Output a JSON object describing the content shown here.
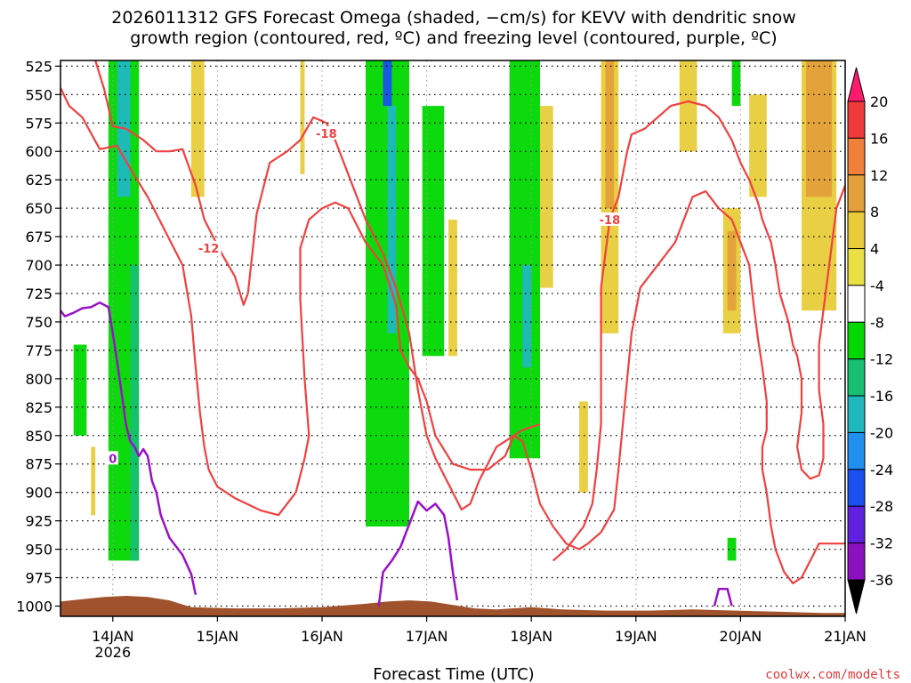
{
  "chart_data": {
    "type": "heatmap",
    "title_line1": "2026011312 GFS Forecast Omega (shaded, −cm/s) for KEVV with dendritic snow",
    "title_line2": "growth region (contoured, red, ºC) and freezing level (contoured, purple, ºC)",
    "xlabel": "Forecast Time (UTC)",
    "credit": "coolwx.com/modelts",
    "y_axis": {
      "unit": "hPa",
      "ticks": [
        "525",
        "550",
        "575",
        "600",
        "625",
        "650",
        "675",
        "700",
        "725",
        "750",
        "775",
        "800",
        "825",
        "850",
        "875",
        "900",
        "925",
        "950",
        "975",
        "1000"
      ]
    },
    "x_axis": {
      "ticks": [
        {
          "label": "14JAN",
          "sub": "2026",
          "t": 12
        },
        {
          "label": "15JAN",
          "sub": "",
          "t": 36
        },
        {
          "label": "16JAN",
          "sub": "",
          "t": 60
        },
        {
          "label": "17JAN",
          "sub": "",
          "t": 84
        },
        {
          "label": "18JAN",
          "sub": "",
          "t": 108
        },
        {
          "label": "19JAN",
          "sub": "",
          "t": 132
        },
        {
          "label": "20JAN",
          "sub": "",
          "t": 156
        },
        {
          "label": "21JAN",
          "sub": "",
          "t": 180
        }
      ],
      "range_hours": [
        0,
        180
      ]
    },
    "colorbar": {
      "labels": [
        "20",
        "16",
        "12",
        "8",
        "4",
        "-4",
        "-8",
        "-12",
        "-16",
        "-20",
        "-24",
        "-28",
        "-32",
        "-36"
      ],
      "colors": [
        "#ff1a6e",
        "#ee3a3a",
        "#f0803a",
        "#e3a03a",
        "#e8cc3a",
        "#eae044",
        "#ffffff",
        "#00d800",
        "#16c070",
        "#20b8c0",
        "#2090f0",
        "#1a50f0",
        "#6020e0",
        "#8a10c0",
        "#a0a0a0",
        "#000000"
      ]
    },
    "omega_bands": [
      {
        "t0": 11,
        "t1": 18,
        "p0": 520,
        "p1": 960,
        "color": "#00d800"
      },
      {
        "t0": 13,
        "t1": 16,
        "p0": 520,
        "p1": 640,
        "color": "#20b8c0"
      },
      {
        "t0": 16,
        "t1": 18,
        "p0": 700,
        "p1": 960,
        "color": "#16c070"
      },
      {
        "t0": 3,
        "t1": 6,
        "p0": 770,
        "p1": 850,
        "color": "#00d800"
      },
      {
        "t0": 7,
        "t1": 8,
        "p0": 860,
        "p1": 920,
        "color": "#e8cc3a"
      },
      {
        "t0": 30,
        "t1": 33,
        "p0": 520,
        "p1": 640,
        "color": "#e8cc3a"
      },
      {
        "t0": 55,
        "t1": 56,
        "p0": 520,
        "p1": 620,
        "color": "#e8cc3a"
      },
      {
        "t0": 70,
        "t1": 80,
        "p0": 520,
        "p1": 930,
        "color": "#00d800"
      },
      {
        "t0": 74,
        "t1": 76,
        "p0": 520,
        "p1": 560,
        "color": "#1a50f0"
      },
      {
        "t0": 75,
        "t1": 77,
        "p0": 560,
        "p1": 760,
        "color": "#20b8c0"
      },
      {
        "t0": 83,
        "t1": 88,
        "p0": 560,
        "p1": 780,
        "color": "#00d800"
      },
      {
        "t0": 89,
        "t1": 91,
        "p0": 660,
        "p1": 780,
        "color": "#e8cc3a"
      },
      {
        "t0": 103,
        "t1": 110,
        "p0": 520,
        "p1": 870,
        "color": "#00d800"
      },
      {
        "t0": 106,
        "t1": 108,
        "p0": 700,
        "p1": 790,
        "color": "#20b8c0"
      },
      {
        "t0": 110,
        "t1": 113,
        "p0": 560,
        "p1": 720,
        "color": "#e8cc3a"
      },
      {
        "t0": 119,
        "t1": 121,
        "p0": 820,
        "p1": 900,
        "color": "#e8cc3a"
      },
      {
        "t0": 124,
        "t1": 128,
        "p0": 520,
        "p1": 760,
        "color": "#e8cc3a"
      },
      {
        "t0": 125,
        "t1": 127,
        "p0": 520,
        "p1": 650,
        "color": "#e3a03a"
      },
      {
        "t0": 142,
        "t1": 146,
        "p0": 520,
        "p1": 600,
        "color": "#e8cc3a"
      },
      {
        "t0": 154,
        "t1": 156,
        "p0": 520,
        "p1": 560,
        "color": "#00d800"
      },
      {
        "t0": 152,
        "t1": 156,
        "p0": 650,
        "p1": 760,
        "color": "#e8cc3a"
      },
      {
        "t0": 153,
        "t1": 155,
        "p0": 670,
        "p1": 740,
        "color": "#e3a03a"
      },
      {
        "t0": 158,
        "t1": 162,
        "p0": 550,
        "p1": 640,
        "color": "#e8cc3a"
      },
      {
        "t0": 153,
        "t1": 155,
        "p0": 940,
        "p1": 960,
        "color": "#00d800"
      },
      {
        "t0": 170,
        "t1": 178,
        "p0": 520,
        "p1": 740,
        "color": "#e8cc3a"
      },
      {
        "t0": 171,
        "t1": 177,
        "p0": 520,
        "p1": 640,
        "color": "#e3a03a"
      }
    ],
    "dgz_contours": [
      {
        "label": "-12",
        "label_at": [
          34,
          685
        ],
        "points": [
          [
            0,
            544
          ],
          [
            2,
            560
          ],
          [
            5,
            570
          ],
          [
            9,
            598
          ],
          [
            13,
            595
          ],
          [
            16,
            615
          ],
          [
            20,
            640
          ],
          [
            24,
            670
          ],
          [
            28,
            700
          ],
          [
            30,
            745
          ],
          [
            31,
            790
          ],
          [
            32,
            830
          ],
          [
            33,
            860
          ],
          [
            34,
            880
          ],
          [
            36,
            895
          ],
          [
            40,
            905
          ],
          [
            46,
            916
          ],
          [
            50,
            920
          ],
          [
            54,
            900
          ],
          [
            56,
            870
          ],
          [
            57,
            850
          ],
          [
            56,
            800
          ],
          [
            55,
            730
          ],
          [
            55,
            685
          ],
          [
            57,
            660
          ],
          [
            60,
            650
          ],
          [
            63,
            645
          ],
          [
            66,
            650
          ],
          [
            70,
            680
          ],
          [
            74,
            700
          ],
          [
            77,
            735
          ],
          [
            78,
            775
          ],
          [
            80,
            790
          ],
          [
            82,
            800
          ],
          [
            84,
            820
          ],
          [
            86,
            850
          ],
          [
            90,
            875
          ],
          [
            94,
            880
          ],
          [
            98,
            880
          ],
          [
            102,
            868
          ],
          [
            104,
            850
          ],
          [
            106,
            855
          ],
          [
            108,
            880
          ],
          [
            110,
            910
          ],
          [
            113,
            930
          ],
          [
            116,
            945
          ],
          [
            119,
            950
          ],
          [
            121,
            945
          ],
          [
            124,
            935
          ],
          [
            127,
            915
          ],
          [
            128,
            880
          ],
          [
            129,
            840
          ],
          [
            130,
            800
          ],
          [
            131,
            760
          ],
          [
            133,
            720
          ],
          [
            137,
            700
          ],
          [
            141,
            680
          ],
          [
            143,
            660
          ],
          [
            145,
            640
          ],
          [
            148,
            635
          ],
          [
            151,
            650
          ],
          [
            154,
            660
          ],
          [
            156,
            680
          ],
          [
            158,
            700
          ],
          [
            159,
            735
          ],
          [
            160,
            765
          ],
          [
            161,
            790
          ],
          [
            162,
            820
          ],
          [
            162,
            845
          ],
          [
            161,
            860
          ],
          [
            161,
            880
          ],
          [
            162,
            900
          ],
          [
            163,
            930
          ],
          [
            164,
            950
          ],
          [
            166,
            970
          ],
          [
            168,
            980
          ],
          [
            170,
            975
          ],
          [
            172,
            960
          ],
          [
            174,
            945
          ],
          [
            178,
            945
          ],
          [
            180,
            945
          ]
        ]
      },
      {
        "label": "-18",
        "label_at": [
          61,
          584
        ],
        "points": [
          [
            8,
            520
          ],
          [
            10,
            545
          ],
          [
            12,
            578
          ],
          [
            15,
            580
          ],
          [
            17,
            585
          ],
          [
            19,
            590
          ],
          [
            22,
            600
          ],
          [
            25,
            600
          ],
          [
            28,
            598
          ],
          [
            31,
            630
          ],
          [
            33,
            660
          ],
          [
            37,
            690
          ],
          [
            40,
            710
          ],
          [
            42,
            735
          ],
          [
            43,
            725
          ],
          [
            44,
            690
          ],
          [
            45,
            655
          ],
          [
            48,
            610
          ],
          [
            52,
            600
          ],
          [
            55,
            590
          ],
          [
            58,
            570
          ],
          [
            61,
            575
          ],
          [
            63,
            590
          ],
          [
            66,
            620
          ],
          [
            70,
            660
          ],
          [
            74,
            690
          ],
          [
            77,
            720
          ],
          [
            80,
            760
          ],
          [
            82,
            810
          ],
          [
            84,
            850
          ],
          [
            86,
            870
          ],
          [
            88,
            885
          ],
          [
            90,
            900
          ],
          [
            92,
            915
          ],
          [
            94,
            910
          ],
          [
            96,
            890
          ],
          [
            98,
            875
          ],
          [
            100,
            860
          ],
          [
            102,
            855
          ],
          [
            104,
            850
          ],
          [
            106,
            845
          ],
          [
            110,
            840
          ]
        ]
      },
      {
        "label": "-18",
        "label_at": [
          126,
          660
        ],
        "points": [
          [
            113,
            960
          ],
          [
            116,
            950
          ],
          [
            120,
            930
          ],
          [
            122,
            910
          ],
          [
            123,
            880
          ],
          [
            124,
            840
          ],
          [
            124,
            800
          ],
          [
            124,
            760
          ],
          [
            124,
            720
          ],
          [
            125,
            690
          ],
          [
            126,
            660
          ],
          [
            128,
            640
          ],
          [
            129,
            620
          ],
          [
            130,
            600
          ],
          [
            131,
            585
          ],
          [
            134,
            580
          ],
          [
            137,
            570
          ],
          [
            140,
            560
          ],
          [
            144,
            556
          ],
          [
            148,
            560
          ],
          [
            151,
            570
          ],
          [
            154,
            590
          ],
          [
            156,
            610
          ],
          [
            158,
            625
          ],
          [
            160,
            645
          ],
          [
            161,
            660
          ],
          [
            163,
            680
          ],
          [
            164,
            700
          ],
          [
            165,
            725
          ],
          [
            167,
            750
          ],
          [
            168,
            770
          ],
          [
            169,
            780
          ],
          [
            170,
            800
          ],
          [
            170,
            830
          ],
          [
            169,
            860
          ],
          [
            170,
            880
          ],
          [
            172,
            888
          ],
          [
            174,
            885
          ],
          [
            175,
            870
          ],
          [
            175,
            840
          ],
          [
            174,
            810
          ],
          [
            174,
            770
          ],
          [
            175,
            740
          ],
          [
            176,
            710
          ],
          [
            177,
            680
          ],
          [
            178,
            650
          ],
          [
            180,
            630
          ]
        ]
      }
    ],
    "freezing_contours": [
      {
        "label": "0",
        "label_at": [
          12,
          870
        ],
        "points": [
          [
            0,
            740
          ],
          [
            1,
            745
          ],
          [
            3,
            742
          ],
          [
            5,
            738
          ],
          [
            7,
            737
          ],
          [
            9,
            733
          ],
          [
            11,
            737
          ],
          [
            12,
            760
          ],
          [
            13,
            785
          ],
          [
            14,
            812
          ],
          [
            15,
            840
          ],
          [
            16,
            855
          ],
          [
            17,
            860
          ],
          [
            18,
            868
          ],
          [
            19,
            862
          ],
          [
            20,
            868
          ],
          [
            21,
            890
          ],
          [
            22,
            900
          ],
          [
            23,
            920
          ],
          [
            25,
            940
          ],
          [
            28,
            955
          ],
          [
            30,
            972
          ],
          [
            31,
            990
          ]
        ]
      },
      {
        "label": "",
        "label_at": null,
        "points": [
          [
            73,
            1000
          ],
          [
            74,
            970
          ],
          [
            76,
            960
          ],
          [
            78,
            948
          ],
          [
            80,
            928
          ],
          [
            82,
            908
          ],
          [
            84,
            916
          ],
          [
            86,
            910
          ],
          [
            88,
            920
          ],
          [
            89,
            940
          ],
          [
            90,
            970
          ],
          [
            91,
            995
          ]
        ]
      },
      {
        "label": "",
        "label_at": null,
        "points": [
          [
            150,
            1000
          ],
          [
            151,
            985
          ],
          [
            153,
            985
          ],
          [
            154,
            1000
          ]
        ]
      }
    ],
    "terrain": {
      "color": "#a0522d",
      "surface_hPa": [
        [
          0,
          996
        ],
        [
          5,
          994
        ],
        [
          10,
          992
        ],
        [
          15,
          991
        ],
        [
          20,
          992
        ],
        [
          25,
          995
        ],
        [
          30,
          1001
        ],
        [
          40,
          1002
        ],
        [
          50,
          1002
        ],
        [
          60,
          1001
        ],
        [
          70,
          998
        ],
        [
          75,
          996
        ],
        [
          80,
          995
        ],
        [
          85,
          996
        ],
        [
          90,
          999
        ],
        [
          95,
          1002
        ],
        [
          100,
          1003
        ],
        [
          108,
          1001
        ],
        [
          115,
          1003
        ],
        [
          125,
          1004
        ],
        [
          135,
          1004
        ],
        [
          145,
          1003
        ],
        [
          155,
          1004
        ],
        [
          165,
          1005
        ],
        [
          175,
          1006
        ],
        [
          180,
          1006
        ]
      ]
    }
  }
}
